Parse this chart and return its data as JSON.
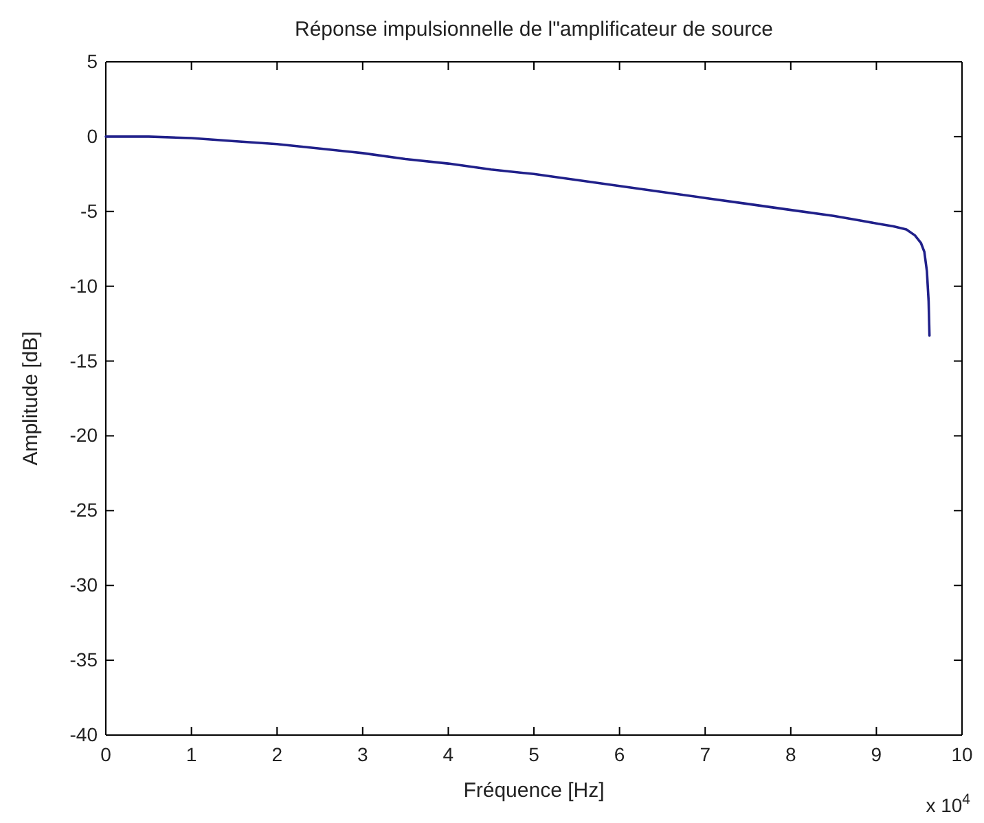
{
  "chart_data": {
    "type": "line",
    "title": "Réponse impulsionnelle de l\"amplificateur de source",
    "xlabel": "Fréquence [Hz]",
    "ylabel": "Amplitude [dB]",
    "annotations": [
      "x 10$^{4}$"
    ],
    "x": [
      0,
      0.5,
      1,
      1.5,
      2,
      2.5,
      3,
      3.5,
      4,
      4.5,
      5,
      5.5,
      6,
      6.5,
      7,
      7.5,
      8,
      8.5,
      8.8,
      9,
      9.2,
      9.35,
      9.45,
      9.52,
      9.56,
      9.59,
      9.61,
      9.62
    ],
    "series": [
      {
        "color": "#20208a",
        "values": [
          0,
          0,
          -0.1,
          -0.3,
          -0.5,
          -0.8,
          -1.1,
          -1.5,
          -1.8,
          -2.2,
          -2.5,
          -2.9,
          -3.3,
          -3.7,
          -4.1,
          -4.5,
          -4.9,
          -5.3,
          -5.6,
          -5.8,
          -6,
          -6.2,
          -6.6,
          -7.1,
          -7.7,
          -9,
          -11,
          -13.3
        ]
      }
    ],
    "xlim": [
      0,
      10
    ],
    "xticks": [
      0,
      1,
      2,
      3,
      4,
      5,
      6,
      7,
      8,
      9,
      10
    ],
    "ylim": [
      -40,
      5
    ],
    "yticks": [
      -40,
      -35,
      -30,
      -25,
      -20,
      -15,
      -10,
      -5,
      0,
      5
    ],
    "grid": false,
    "marker": "none",
    "line_style": "solid"
  }
}
